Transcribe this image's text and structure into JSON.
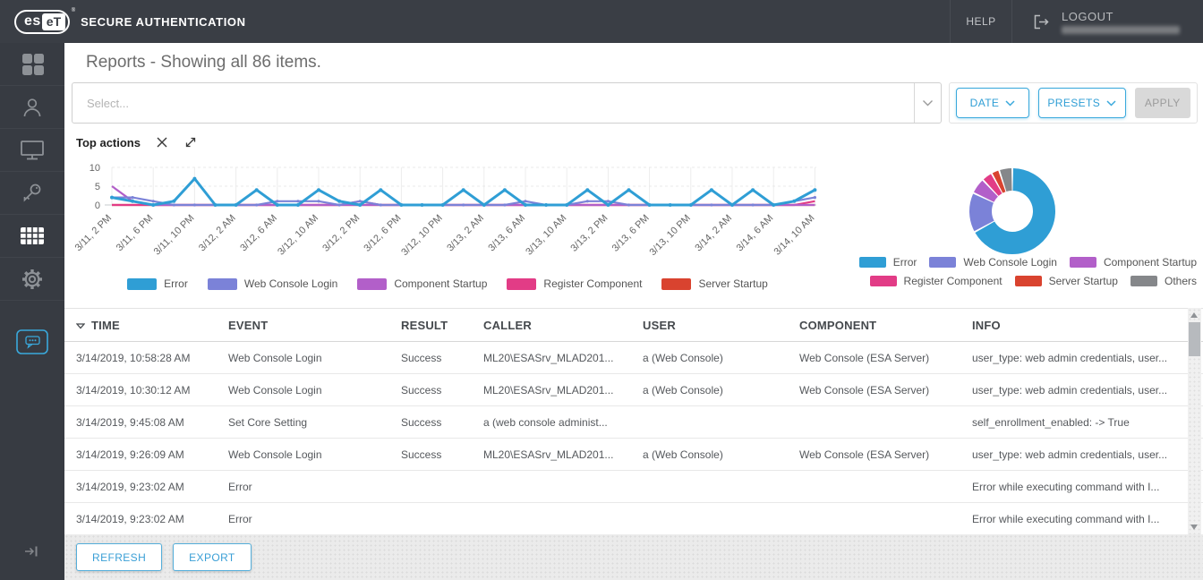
{
  "topbar": {
    "brand_es": "es",
    "brand_et": "eT",
    "reg_mark": "®",
    "product": "SECURE AUTHENTICATION",
    "help_label": "HELP",
    "logout_label": "LOGOUT"
  },
  "sidebar": {
    "items": [
      "dashboard",
      "users",
      "computers",
      "credentials",
      "reports",
      "settings",
      "feedback",
      "collapse"
    ],
    "active_item": "reports",
    "accent_color": "#3aa9dc"
  },
  "header": {
    "title": "Reports - Showing all 86 items."
  },
  "filters": {
    "select_placeholder": "Select...",
    "date_label": "DATE",
    "presets_label": "PRESETS",
    "apply_label": "APPLY"
  },
  "panel": {
    "title": "Top actions"
  },
  "chart_data": [
    {
      "type": "line",
      "title": "Top actions",
      "x_labels": [
        "3/11, 2 PM",
        "3/11, 6 PM",
        "3/11, 10 PM",
        "3/12, 2 AM",
        "3/12, 6 AM",
        "3/12, 10 AM",
        "3/12, 2 PM",
        "3/12, 6 PM",
        "3/12, 10 PM",
        "3/13, 2 AM",
        "3/13, 6 AM",
        "3/13, 10 AM",
        "3/13, 2 PM",
        "3/13, 6 PM",
        "3/13, 10 PM",
        "3/14, 2 AM",
        "3/14, 6 AM",
        "3/14, 10 AM"
      ],
      "ylim": [
        0,
        10
      ],
      "yticks": [
        0,
        5,
        10
      ],
      "grid": true,
      "legend_position": "bottom-center",
      "series": [
        {
          "name": "Error",
          "color": "#2f9ed5",
          "values": [
            2,
            1,
            0,
            1,
            7,
            0,
            0,
            4,
            0,
            0,
            4,
            1,
            0,
            4,
            0,
            0,
            0,
            4,
            0,
            4,
            0,
            0,
            0,
            4,
            0,
            4,
            0,
            0,
            0,
            4,
            0,
            4,
            0,
            1,
            4
          ]
        },
        {
          "name": "Web Console Login",
          "color": "#7b82d8",
          "values": [
            2,
            2,
            1,
            0,
            0,
            0,
            0,
            0,
            1,
            1,
            1,
            0,
            1,
            0,
            0,
            0,
            0,
            0,
            0,
            0,
            1,
            0,
            0,
            1,
            1,
            0,
            0,
            0,
            0,
            0,
            0,
            0,
            0,
            1,
            2
          ]
        },
        {
          "name": "Component Startup",
          "color": "#b25fc9",
          "values": [
            5,
            1,
            0,
            0,
            0,
            0,
            0,
            0,
            0,
            0,
            0,
            0,
            0,
            0,
            0,
            0,
            0,
            0,
            0,
            0,
            0,
            0,
            0,
            0,
            0,
            0,
            0,
            0,
            0,
            0,
            0,
            0,
            0,
            0,
            0
          ]
        },
        {
          "name": "Register Component",
          "color": "#e23c86",
          "values": [
            0,
            0,
            0,
            0,
            0,
            0,
            0,
            0,
            0,
            0,
            0,
            0,
            1,
            0,
            0,
            0,
            0,
            0,
            0,
            0,
            0,
            0,
            0,
            0,
            0,
            0,
            0,
            0,
            0,
            0,
            0,
            0,
            0,
            0,
            1
          ]
        },
        {
          "name": "Server Startup",
          "color": "#d9432f",
          "values": [
            0,
            0,
            0,
            0,
            0,
            0,
            0,
            0,
            0,
            0,
            0,
            0,
            0,
            0,
            0,
            0,
            0,
            0,
            0,
            0,
            0,
            0,
            0,
            0,
            0,
            0,
            0,
            0,
            0,
            0,
            0,
            0,
            0,
            0,
            0
          ]
        }
      ]
    },
    {
      "type": "pie",
      "subtype": "donut",
      "labels": [
        "Error",
        "Web Console Login",
        "Component Startup",
        "Register Component",
        "Server Startup",
        "Others"
      ],
      "values": [
        67,
        15,
        6,
        4,
        3,
        5
      ],
      "colors": [
        "#2f9ed5",
        "#7b82d8",
        "#b25fc9",
        "#e23c86",
        "#d9432f",
        "#85878a"
      ],
      "legend_position": "right, two rows"
    }
  ],
  "table": {
    "columns": [
      "TIME",
      "EVENT",
      "RESULT",
      "CALLER",
      "USER",
      "COMPONENT",
      "INFO"
    ],
    "sorted_column": "TIME",
    "rows": [
      {
        "time": "3/14/2019, 10:58:28 AM",
        "event": "Web Console Login",
        "result": "Success",
        "caller": "ML20\\ESASrv_MLAD201...",
        "user": "a (Web Console)",
        "component": "Web Console (ESA Server)",
        "info": "user_type: web admin credentials, user..."
      },
      {
        "time": "3/14/2019, 10:30:12 AM",
        "event": "Web Console Login",
        "result": "Success",
        "caller": "ML20\\ESASrv_MLAD201...",
        "user": "a (Web Console)",
        "component": "Web Console (ESA Server)",
        "info": "user_type: web admin credentials, user..."
      },
      {
        "time": "3/14/2019, 9:45:08 AM",
        "event": "Set Core Setting",
        "result": "Success",
        "caller": "a (web console administ...",
        "user": "",
        "component": "",
        "info": "self_enrollment_enabled: -> True"
      },
      {
        "time": "3/14/2019, 9:26:09 AM",
        "event": "Web Console Login",
        "result": "Success",
        "caller": "ML20\\ESASrv_MLAD201...",
        "user": "a (Web Console)",
        "component": "Web Console (ESA Server)",
        "info": "user_type: web admin credentials, user..."
      },
      {
        "time": "3/14/2019, 9:23:02 AM",
        "event": "Error",
        "result": "",
        "caller": "",
        "user": "",
        "component": "",
        "info": "Error while executing command with I..."
      },
      {
        "time": "3/14/2019, 9:23:02 AM",
        "event": "Error",
        "result": "",
        "caller": "",
        "user": "",
        "component": "",
        "info": "Error while executing command with I..."
      }
    ]
  },
  "footer": {
    "refresh_label": "REFRESH",
    "export_label": "EXPORT"
  }
}
